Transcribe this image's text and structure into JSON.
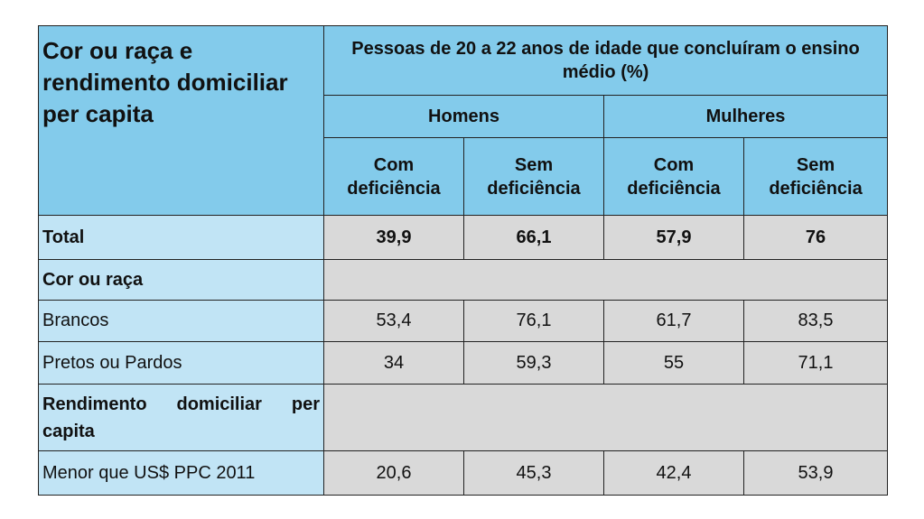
{
  "header": {
    "row_label": "Cor ou raça e rendimento domiciliar per capita",
    "group_title": "Pessoas de 20 a 22 anos de idade que concluíram o ensino médio (%)",
    "groups": [
      "Homens",
      "Mulheres"
    ],
    "subgroups": [
      "Com deficiência",
      "Sem deficiência",
      "Com deficiência",
      "Sem deficiência"
    ]
  },
  "rows": [
    {
      "label": "Total",
      "values": [
        "39,9",
        "66,1",
        "57,9",
        "76"
      ]
    },
    {
      "label": "Cor ou raça"
    },
    {
      "label": "Brancos",
      "values": [
        "53,4",
        "76,1",
        "61,7",
        "83,5"
      ]
    },
    {
      "label": "Pretos ou Pardos",
      "values": [
        "34",
        "59,3",
        "55",
        "71,1"
      ]
    },
    {
      "label": "Rendimento domiciliar per capita"
    },
    {
      "label": "Menor que US$ PPC 2011",
      "values": [
        "20,6",
        "45,3",
        "42,4",
        "53,9"
      ]
    }
  ]
}
